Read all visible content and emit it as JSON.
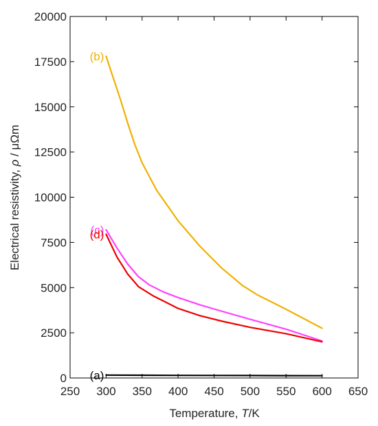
{
  "chart_data": {
    "type": "line",
    "xlabel_pre": "Temperature, ",
    "xlabel_var": "T",
    "xlabel_post": "/K",
    "ylabel_pre": "Electrical resistivity, ",
    "ylabel_var": "ρ",
    "ylabel_post": " / μΩm",
    "xlim": [
      250,
      650
    ],
    "ylim": [
      0,
      20000
    ],
    "x_ticks": [
      250,
      300,
      350,
      400,
      450,
      500,
      550,
      600,
      650
    ],
    "y_ticks": [
      0,
      2500,
      5000,
      7500,
      10000,
      12500,
      15000,
      17500,
      20000
    ],
    "series": [
      {
        "name": "(a)",
        "color": "#000000",
        "points": [
          [
            300,
            160
          ],
          [
            350,
            150
          ],
          [
            400,
            145
          ],
          [
            450,
            140
          ],
          [
            500,
            135
          ],
          [
            550,
            130
          ],
          [
            600,
            125
          ]
        ]
      },
      {
        "name": "(b)",
        "color": "#f0b000",
        "points": [
          [
            300,
            17800
          ],
          [
            310,
            16600
          ],
          [
            320,
            15400
          ],
          [
            330,
            14100
          ],
          [
            340,
            12900
          ],
          [
            350,
            11900
          ],
          [
            370,
            10400
          ],
          [
            400,
            8700
          ],
          [
            430,
            7300
          ],
          [
            460,
            6100
          ],
          [
            490,
            5100
          ],
          [
            510,
            4600
          ],
          [
            550,
            3800
          ],
          [
            600,
            2750
          ]
        ]
      },
      {
        "name": "(c)",
        "color": "#ff40ff",
        "points": [
          [
            300,
            8200
          ],
          [
            315,
            7200
          ],
          [
            330,
            6300
          ],
          [
            345,
            5600
          ],
          [
            360,
            5150
          ],
          [
            380,
            4750
          ],
          [
            400,
            4450
          ],
          [
            430,
            4050
          ],
          [
            460,
            3700
          ],
          [
            500,
            3250
          ],
          [
            550,
            2700
          ],
          [
            600,
            2050
          ]
        ]
      },
      {
        "name": "(d)",
        "color": "#ee0000",
        "points": [
          [
            300,
            7950
          ],
          [
            315,
            6700
          ],
          [
            330,
            5750
          ],
          [
            345,
            5050
          ],
          [
            365,
            4550
          ],
          [
            380,
            4250
          ],
          [
            400,
            3850
          ],
          [
            430,
            3450
          ],
          [
            460,
            3150
          ],
          [
            500,
            2800
          ],
          [
            550,
            2450
          ],
          [
            600,
            2000
          ]
        ]
      }
    ]
  }
}
